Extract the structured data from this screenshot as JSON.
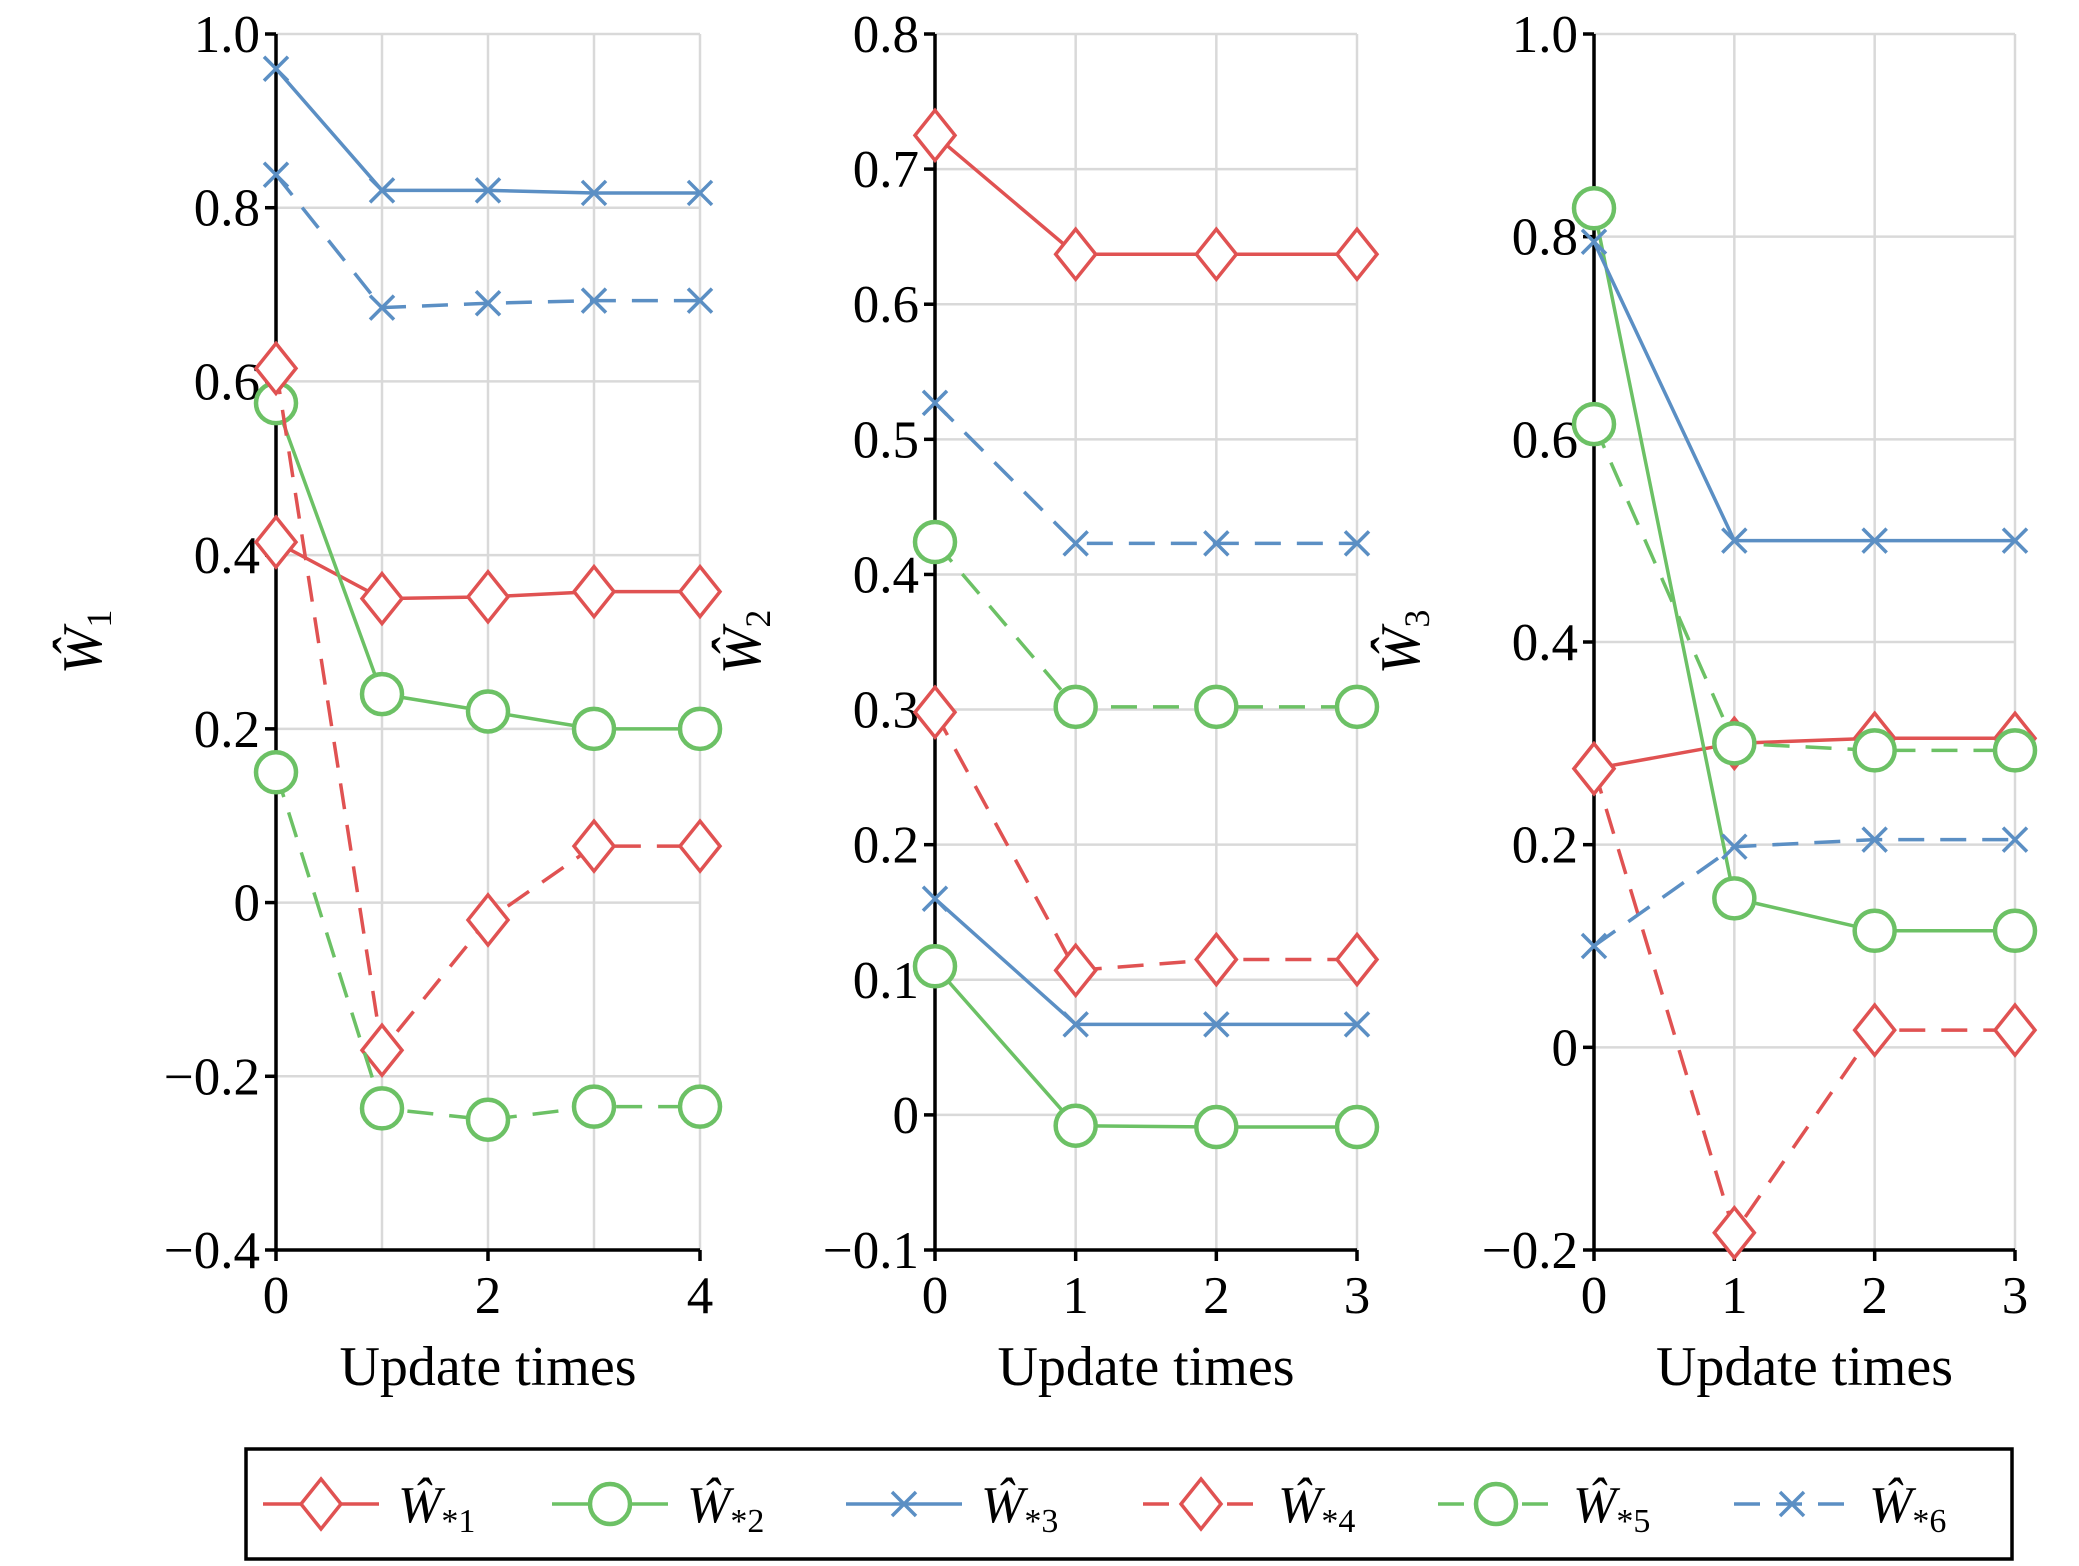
{
  "colors": {
    "red": "#e05252",
    "green": "#6cc165",
    "blue": "#5b8fc4",
    "grid": "#d9d9d9",
    "axis": "#000000"
  },
  "chart_data": [
    {
      "type": "line",
      "ylabel": {
        "main": "Ŵ",
        "sub": "1"
      },
      "xlabel": "Update times",
      "x": [
        0,
        1,
        2,
        3,
        4
      ],
      "xlim": [
        0,
        4
      ],
      "ylim": [
        -0.4,
        1.0
      ],
      "xticks": [
        "0",
        "2",
        "4"
      ],
      "xtick_values": [
        0,
        2,
        4
      ],
      "yticks": [
        "−0.4",
        "−0.2",
        "0",
        "0.2",
        "0.4",
        "0.6",
        "0.8",
        "1.0"
      ],
      "ytick_values": [
        -0.4,
        -0.2,
        0,
        0.2,
        0.4,
        0.6,
        0.8,
        1.0
      ],
      "grid": true,
      "series": [
        {
          "name": "Ŵ*1",
          "values": [
            0.415,
            0.35,
            0.352,
            0.358,
            0.358
          ],
          "color": "red",
          "dash": false,
          "marker": "diamond"
        },
        {
          "name": "Ŵ*2",
          "values": [
            0.575,
            0.24,
            0.22,
            0.2,
            0.2
          ],
          "color": "green",
          "dash": false,
          "marker": "circle"
        },
        {
          "name": "Ŵ*3",
          "values": [
            0.96,
            0.82,
            0.82,
            0.817,
            0.817
          ],
          "color": "blue",
          "dash": false,
          "marker": "x"
        },
        {
          "name": "Ŵ*4",
          "values": [
            0.615,
            -0.17,
            -0.02,
            0.065,
            0.065
          ],
          "color": "red",
          "dash": true,
          "marker": "diamond"
        },
        {
          "name": "Ŵ*5",
          "values": [
            0.15,
            -0.237,
            -0.25,
            -0.235,
            -0.235
          ],
          "color": "green",
          "dash": true,
          "marker": "circle"
        },
        {
          "name": "Ŵ*6",
          "values": [
            0.838,
            0.685,
            0.69,
            0.693,
            0.693
          ],
          "color": "blue",
          "dash": true,
          "marker": "x"
        }
      ]
    },
    {
      "type": "line",
      "ylabel": {
        "main": "Ŵ",
        "sub": "2"
      },
      "xlabel": "Update times",
      "x": [
        0,
        1,
        2,
        3
      ],
      "xlim": [
        0,
        3
      ],
      "ylim": [
        -0.1,
        0.8
      ],
      "xticks": [
        "0",
        "1",
        "2",
        "3"
      ],
      "xtick_values": [
        0,
        1,
        2,
        3
      ],
      "yticks": [
        "−0.1",
        "0",
        "0.1",
        "0.2",
        "0.3",
        "0.4",
        "0.5",
        "0.6",
        "0.7",
        "0.8"
      ],
      "ytick_values": [
        -0.1,
        0,
        0.1,
        0.2,
        0.3,
        0.4,
        0.5,
        0.6,
        0.7,
        0.8
      ],
      "grid": true,
      "series": [
        {
          "name": "Ŵ*1",
          "values": [
            0.725,
            0.637,
            0.637,
            0.637
          ],
          "color": "red",
          "dash": false,
          "marker": "diamond"
        },
        {
          "name": "Ŵ*2",
          "values": [
            0.11,
            -0.008,
            -0.009,
            -0.009
          ],
          "color": "green",
          "dash": false,
          "marker": "circle"
        },
        {
          "name": "Ŵ*3",
          "values": [
            0.16,
            0.067,
            0.067,
            0.067
          ],
          "color": "blue",
          "dash": false,
          "marker": "x"
        },
        {
          "name": "Ŵ*4",
          "values": [
            0.298,
            0.107,
            0.115,
            0.115
          ],
          "color": "red",
          "dash": true,
          "marker": "diamond"
        },
        {
          "name": "Ŵ*5",
          "values": [
            0.424,
            0.302,
            0.302,
            0.302
          ],
          "color": "green",
          "dash": true,
          "marker": "circle"
        },
        {
          "name": "Ŵ*6",
          "values": [
            0.527,
            0.423,
            0.423,
            0.423
          ],
          "color": "blue",
          "dash": true,
          "marker": "x"
        }
      ]
    },
    {
      "type": "line",
      "ylabel": {
        "main": "Ŵ",
        "sub": "3"
      },
      "xlabel": "Update times",
      "x": [
        0,
        1,
        2,
        3
      ],
      "xlim": [
        0,
        3
      ],
      "ylim": [
        -0.2,
        1.0
      ],
      "xticks": [
        "0",
        "1",
        "2",
        "3"
      ],
      "xtick_values": [
        0,
        1,
        2,
        3
      ],
      "yticks": [
        "−0.2",
        "0",
        "0.2",
        "0.4",
        "0.6",
        "0.8",
        "1.0"
      ],
      "ytick_values": [
        -0.2,
        0,
        0.2,
        0.4,
        0.6,
        0.8,
        1.0
      ],
      "grid": true,
      "series": [
        {
          "name": "Ŵ*1",
          "values": [
            0.275,
            0.3,
            0.305,
            0.305
          ],
          "color": "red",
          "dash": false,
          "marker": "diamond"
        },
        {
          "name": "Ŵ*2",
          "values": [
            0.828,
            0.147,
            0.115,
            0.115
          ],
          "color": "green",
          "dash": false,
          "marker": "circle"
        },
        {
          "name": "Ŵ*3",
          "values": [
            0.795,
            0.5,
            0.5,
            0.5
          ],
          "color": "blue",
          "dash": false,
          "marker": "x"
        },
        {
          "name": "Ŵ*4",
          "values": [
            0.275,
            -0.183,
            0.017,
            0.017
          ],
          "color": "red",
          "dash": true,
          "marker": "diamond"
        },
        {
          "name": "Ŵ*5",
          "values": [
            0.615,
            0.3,
            0.293,
            0.293
          ],
          "color": "green",
          "dash": true,
          "marker": "circle"
        },
        {
          "name": "Ŵ*6",
          "values": [
            0.1,
            0.198,
            0.205,
            0.205
          ],
          "color": "blue",
          "dash": true,
          "marker": "x"
        }
      ]
    }
  ],
  "legend": {
    "placement": "bottom",
    "entries": [
      {
        "main": "Ŵ",
        "sub": "*1",
        "color": "red",
        "dash": false,
        "marker": "diamond"
      },
      {
        "main": "Ŵ",
        "sub": "*2",
        "color": "green",
        "dash": false,
        "marker": "circle"
      },
      {
        "main": "Ŵ",
        "sub": "*3",
        "color": "blue",
        "dash": false,
        "marker": "x"
      },
      {
        "main": "Ŵ",
        "sub": "*4",
        "color": "red",
        "dash": true,
        "marker": "diamond"
      },
      {
        "main": "Ŵ",
        "sub": "*5",
        "color": "green",
        "dash": true,
        "marker": "circle"
      },
      {
        "main": "Ŵ",
        "sub": "*6",
        "color": "blue",
        "dash": true,
        "marker": "x"
      }
    ]
  }
}
